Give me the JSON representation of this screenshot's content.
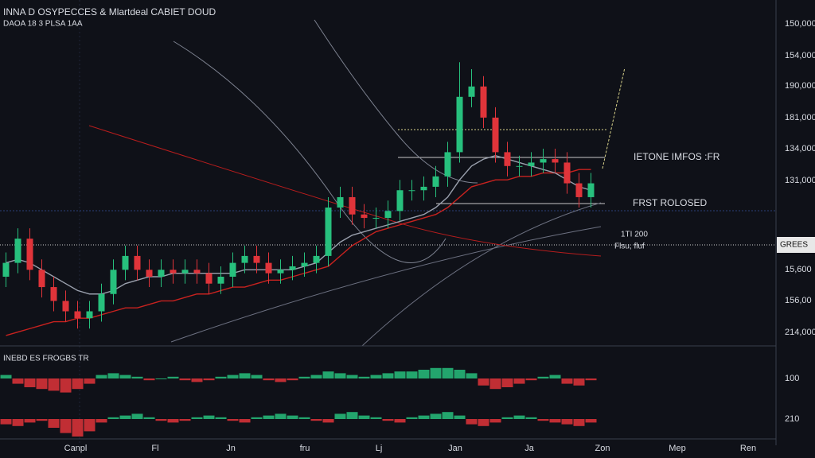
{
  "chart_data": {
    "type": "candlestick",
    "title": "INNA D OSYPECCES & Mlartdeal CABIET DOUD",
    "subtitle": "DAOA 18 3 PLSA 1AA",
    "ylim": [
      0,
      100
    ],
    "up_color": "#27c07d",
    "down_color": "#e0343a",
    "open": [
      20,
      24,
      31,
      22,
      17,
      13,
      10,
      8,
      10,
      15,
      22,
      26,
      22,
      20,
      22,
      21,
      22,
      21,
      18,
      20,
      24,
      26,
      24,
      21,
      22,
      23,
      24,
      26,
      40,
      43,
      38,
      37,
      37,
      39,
      45,
      45,
      46,
      49,
      56,
      72,
      75,
      66,
      56,
      52,
      52,
      53,
      54,
      53,
      47,
      43
    ],
    "high": [
      27,
      34,
      34,
      25,
      20,
      16,
      13,
      13,
      18,
      25,
      29,
      29,
      25,
      25,
      25,
      25,
      25,
      24,
      23,
      27,
      29,
      29,
      27,
      25,
      26,
      27,
      29,
      43,
      46,
      46,
      41,
      40,
      42,
      48,
      48,
      49,
      52,
      59,
      82,
      80,
      78,
      69,
      59,
      55,
      56,
      57,
      57,
      56,
      50,
      50
    ],
    "low": [
      17,
      21,
      19,
      14,
      10,
      7,
      5,
      5,
      7,
      12,
      19,
      19,
      17,
      17,
      18,
      18,
      18,
      15,
      15,
      17,
      21,
      21,
      18,
      18,
      19,
      20,
      21,
      23,
      37,
      35,
      34,
      34,
      34,
      36,
      42,
      42,
      43,
      46,
      53,
      69,
      63,
      53,
      49,
      49,
      49,
      50,
      50,
      44,
      40,
      40
    ],
    "close": [
      24,
      31,
      22,
      17,
      13,
      10,
      8,
      10,
      15,
      22,
      26,
      22,
      20,
      22,
      21,
      22,
      21,
      18,
      20,
      24,
      26,
      24,
      21,
      22,
      23,
      24,
      26,
      40,
      43,
      38,
      37,
      37,
      39,
      45,
      45,
      46,
      49,
      56,
      72,
      75,
      66,
      56,
      52,
      52,
      53,
      54,
      53,
      47,
      43,
      47
    ],
    "ma": [
      {
        "color": "#c8221f",
        "values": [
          3,
          4,
          5,
          6,
          7,
          7,
          8,
          8,
          9,
          10,
          11,
          11,
          12,
          13,
          13,
          14,
          15,
          15,
          16,
          17,
          17,
          18,
          19,
          19,
          20,
          21,
          22,
          23,
          26,
          29,
          31,
          33,
          34,
          35,
          36,
          37,
          38,
          40,
          43,
          46,
          47,
          48,
          48,
          49,
          49,
          50,
          50,
          50,
          51,
          51
        ]
      },
      {
        "color": "#9aa0ad",
        "values": [
          24,
          25,
          24,
          22,
          20,
          18,
          16,
          15,
          15,
          16,
          18,
          19,
          20,
          20,
          21,
          21,
          21,
          21,
          21,
          21,
          22,
          22,
          22,
          22,
          22,
          23,
          24,
          27,
          30,
          32,
          33,
          34,
          35,
          36,
          37,
          38,
          40,
          43,
          48,
          52,
          54,
          55,
          54,
          53,
          52,
          51,
          50,
          48,
          46,
          45
        ]
      }
    ],
    "y_labels": [
      "150,000",
      "154,000",
      "190,000",
      "181,000",
      "134,000",
      "131,000",
      "15,600",
      "156,00",
      "214,000"
    ],
    "tag": "GREES",
    "annotations": [
      "IETONE IMFOS :FR",
      "FRST ROLOSED",
      "1TI 200",
      "Flsu, fluf"
    ],
    "x_labels": [
      "Canpl",
      "Fl",
      "Jn",
      "fru",
      "Lj",
      "Jan",
      "Ja",
      "Zon",
      "Mep",
      "Ren"
    ],
    "indicator": {
      "label": "INEBD ES FROGBS TR",
      "ylim": [
        -10,
        10
      ],
      "axis_labels": [
        "100",
        "210"
      ],
      "panels": [
        [
          2,
          -3,
          -5,
          -6,
          -7,
          -8,
          -6,
          -3,
          2,
          3,
          2,
          1,
          -1,
          0,
          1,
          -1,
          -2,
          -1,
          1,
          2,
          3,
          2,
          -1,
          -2,
          -1,
          1,
          2,
          4,
          3,
          2,
          1,
          2,
          3,
          4,
          4,
          5,
          6,
          6,
          5,
          3,
          -4,
          -6,
          -5,
          -3,
          -1,
          1,
          2,
          -3,
          -4,
          -1
        ],
        [
          -3,
          -4,
          -2,
          -1,
          -5,
          -8,
          -10,
          -7,
          -2,
          1,
          2,
          3,
          1,
          -1,
          -2,
          -1,
          1,
          2,
          1,
          -1,
          -2,
          1,
          2,
          3,
          2,
          1,
          -1,
          -2,
          3,
          4,
          2,
          1,
          -1,
          -2,
          1,
          2,
          3,
          4,
          2,
          -3,
          -4,
          -2,
          1,
          2,
          1,
          -1,
          -2,
          -3,
          -4,
          -2
        ]
      ]
    }
  }
}
